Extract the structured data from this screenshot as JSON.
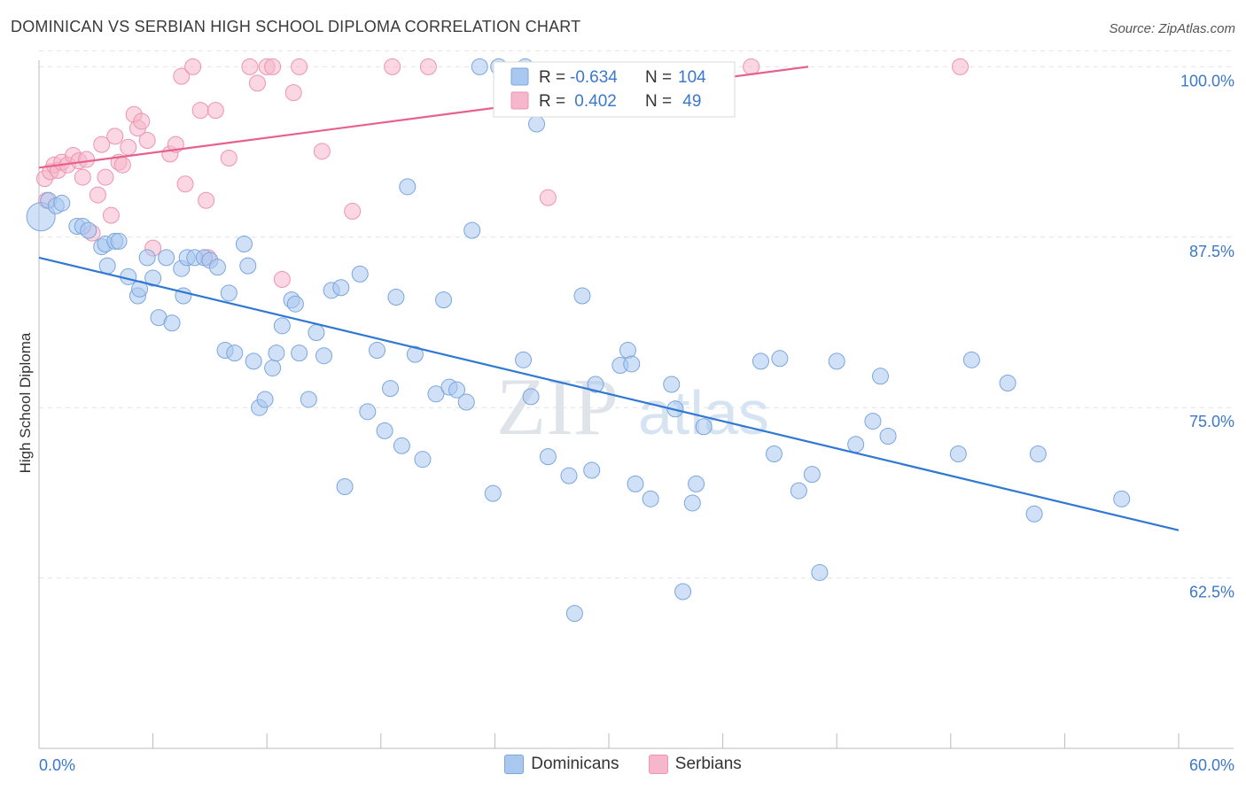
{
  "header": {
    "title": "DOMINICAN VS SERBIAN HIGH SCHOOL DIPLOMA CORRELATION CHART",
    "source": "Source: ZipAtlas.com"
  },
  "watermark": {
    "zip": "ZIP",
    "atlas": "atlas"
  },
  "colors": {
    "blue_fill": "#a9c8f0",
    "blue_stroke": "#7aa6de",
    "blue_line": "#2f78d4",
    "pink_fill": "#f6b6cb",
    "pink_stroke": "#ee94b1",
    "pink_line": "#e8608d",
    "axis_text": "#3b78cc",
    "grid": "#e2e2e2"
  },
  "legend_box": {
    "rows": [
      {
        "r_label": "R = ",
        "r_value": "-0.634",
        "n_label": "N = ",
        "n_value": "104"
      },
      {
        "r_label": "R = ",
        "r_value": " 0.402",
        "n_label": "N = ",
        "n_value": " 49"
      }
    ]
  },
  "legend_bottom": {
    "items": [
      "Dominicans",
      "Serbians"
    ]
  },
  "chart_data": {
    "type": "scatter",
    "title": "DOMINICAN VS SERBIAN HIGH SCHOOL DIPLOMA CORRELATION CHART",
    "xlabel": "",
    "ylabel": "High School Diploma",
    "xlim": [
      0,
      60
    ],
    "ylim": [
      50,
      101
    ],
    "x_tick_labels": [
      "0.0%",
      "60.0%"
    ],
    "y_ticks": [
      62.5,
      75.0,
      87.5,
      100.0
    ],
    "y_tick_labels": [
      "62.5%",
      "75.0%",
      "87.5%",
      "100.0%"
    ],
    "grid": true,
    "series": [
      {
        "name": "Dominicans",
        "color": "#a9c8f0",
        "r": -0.634,
        "n": 104,
        "trend": {
          "x": [
            0,
            60
          ],
          "y": [
            86.0,
            66.0
          ]
        },
        "points": [
          [
            0.1,
            89.0
          ],
          [
            0.5,
            90.2
          ],
          [
            0.9,
            89.8
          ],
          [
            1.2,
            90.0
          ],
          [
            2.0,
            88.3
          ],
          [
            2.3,
            88.3
          ],
          [
            2.6,
            88.0
          ],
          [
            3.3,
            86.8
          ],
          [
            3.5,
            87.0
          ],
          [
            4.0,
            87.2
          ],
          [
            4.2,
            87.2
          ],
          [
            3.6,
            85.4
          ],
          [
            4.7,
            84.6
          ],
          [
            5.2,
            83.2
          ],
          [
            5.3,
            83.7
          ],
          [
            5.7,
            86.0
          ],
          [
            6.0,
            84.5
          ],
          [
            6.3,
            81.6
          ],
          [
            6.7,
            86.0
          ],
          [
            7.0,
            81.2
          ],
          [
            7.5,
            85.2
          ],
          [
            7.6,
            83.2
          ],
          [
            7.8,
            86.0
          ],
          [
            8.2,
            86.0
          ],
          [
            8.7,
            86.0
          ],
          [
            9.0,
            85.8
          ],
          [
            9.4,
            85.3
          ],
          [
            9.8,
            79.2
          ],
          [
            10.0,
            83.4
          ],
          [
            10.3,
            79.0
          ],
          [
            10.8,
            87.0
          ],
          [
            11.0,
            85.4
          ],
          [
            11.3,
            78.4
          ],
          [
            11.6,
            75.0
          ],
          [
            11.9,
            75.6
          ],
          [
            12.3,
            77.9
          ],
          [
            12.5,
            79.0
          ],
          [
            12.8,
            81.0
          ],
          [
            13.3,
            82.9
          ],
          [
            13.5,
            82.6
          ],
          [
            13.7,
            79.0
          ],
          [
            14.2,
            75.6
          ],
          [
            14.6,
            80.5
          ],
          [
            15.0,
            78.8
          ],
          [
            15.4,
            83.6
          ],
          [
            15.9,
            83.8
          ],
          [
            16.1,
            69.2
          ],
          [
            16.9,
            84.8
          ],
          [
            17.3,
            74.7
          ],
          [
            17.8,
            79.2
          ],
          [
            18.2,
            73.3
          ],
          [
            18.5,
            76.4
          ],
          [
            18.8,
            83.1
          ],
          [
            19.1,
            72.2
          ],
          [
            19.4,
            91.2
          ],
          [
            19.8,
            78.9
          ],
          [
            20.2,
            71.2
          ],
          [
            20.9,
            76.0
          ],
          [
            21.3,
            82.9
          ],
          [
            21.6,
            76.5
          ],
          [
            22.0,
            76.3
          ],
          [
            22.5,
            75.4
          ],
          [
            22.8,
            88.0
          ],
          [
            23.2,
            100.0
          ],
          [
            24.2,
            100.0
          ],
          [
            23.9,
            68.7
          ],
          [
            25.6,
            100.0
          ],
          [
            25.5,
            78.5
          ],
          [
            25.9,
            75.8
          ],
          [
            26.2,
            95.8
          ],
          [
            26.8,
            71.4
          ],
          [
            27.9,
            70.0
          ],
          [
            28.2,
            59.9
          ],
          [
            28.6,
            83.2
          ],
          [
            29.1,
            70.4
          ],
          [
            29.3,
            76.7
          ],
          [
            30.6,
            78.1
          ],
          [
            31.0,
            79.2
          ],
          [
            31.2,
            78.2
          ],
          [
            31.4,
            69.4
          ],
          [
            32.2,
            68.3
          ],
          [
            33.3,
            76.7
          ],
          [
            33.5,
            74.9
          ],
          [
            33.9,
            61.5
          ],
          [
            34.4,
            68.0
          ],
          [
            34.6,
            69.4
          ],
          [
            35.0,
            73.6
          ],
          [
            38.0,
            78.4
          ],
          [
            38.7,
            71.6
          ],
          [
            39.0,
            78.6
          ],
          [
            40.0,
            68.9
          ],
          [
            40.7,
            70.1
          ],
          [
            41.1,
            62.9
          ],
          [
            42.0,
            78.4
          ],
          [
            43.0,
            72.3
          ],
          [
            43.9,
            74.0
          ],
          [
            44.3,
            77.3
          ],
          [
            44.7,
            72.9
          ],
          [
            48.4,
            71.6
          ],
          [
            49.1,
            78.5
          ],
          [
            51.0,
            76.8
          ],
          [
            52.4,
            67.2
          ],
          [
            52.6,
            71.6
          ],
          [
            57.0,
            68.3
          ]
        ]
      },
      {
        "name": "Serbians",
        "color": "#f6b6cb",
        "r": 0.402,
        "n": 49,
        "trend": {
          "x": [
            0,
            40.5
          ],
          "y": [
            92.6,
            100.0
          ]
        },
        "points": [
          [
            0.3,
            91.8
          ],
          [
            0.4,
            90.2
          ],
          [
            0.6,
            92.3
          ],
          [
            0.8,
            92.8
          ],
          [
            1.0,
            92.4
          ],
          [
            1.2,
            93.0
          ],
          [
            1.5,
            92.8
          ],
          [
            1.8,
            93.5
          ],
          [
            2.1,
            93.1
          ],
          [
            2.3,
            91.9
          ],
          [
            2.5,
            93.2
          ],
          [
            2.8,
            87.8
          ],
          [
            3.1,
            90.6
          ],
          [
            3.3,
            94.3
          ],
          [
            3.5,
            91.9
          ],
          [
            3.8,
            89.1
          ],
          [
            4.0,
            94.9
          ],
          [
            4.2,
            93.0
          ],
          [
            4.4,
            92.8
          ],
          [
            4.7,
            94.1
          ],
          [
            5.0,
            96.5
          ],
          [
            5.2,
            95.5
          ],
          [
            5.4,
            96.0
          ],
          [
            5.7,
            94.6
          ],
          [
            6.0,
            86.7
          ],
          [
            6.9,
            93.6
          ],
          [
            7.2,
            94.3
          ],
          [
            7.5,
            99.3
          ],
          [
            7.7,
            91.4
          ],
          [
            8.1,
            100.0
          ],
          [
            8.5,
            96.8
          ],
          [
            8.8,
            90.2
          ],
          [
            8.9,
            86.0
          ],
          [
            9.3,
            96.8
          ],
          [
            10.0,
            93.3
          ],
          [
            11.1,
            100.0
          ],
          [
            11.5,
            98.8
          ],
          [
            12.0,
            100.0
          ],
          [
            12.3,
            100.0
          ],
          [
            12.8,
            84.4
          ],
          [
            13.4,
            98.1
          ],
          [
            13.7,
            100.0
          ],
          [
            14.9,
            93.8
          ],
          [
            16.5,
            89.4
          ],
          [
            18.6,
            100.0
          ],
          [
            20.5,
            100.0
          ],
          [
            26.8,
            90.4
          ],
          [
            37.5,
            100.0
          ],
          [
            48.5,
            100.0
          ]
        ]
      }
    ]
  }
}
